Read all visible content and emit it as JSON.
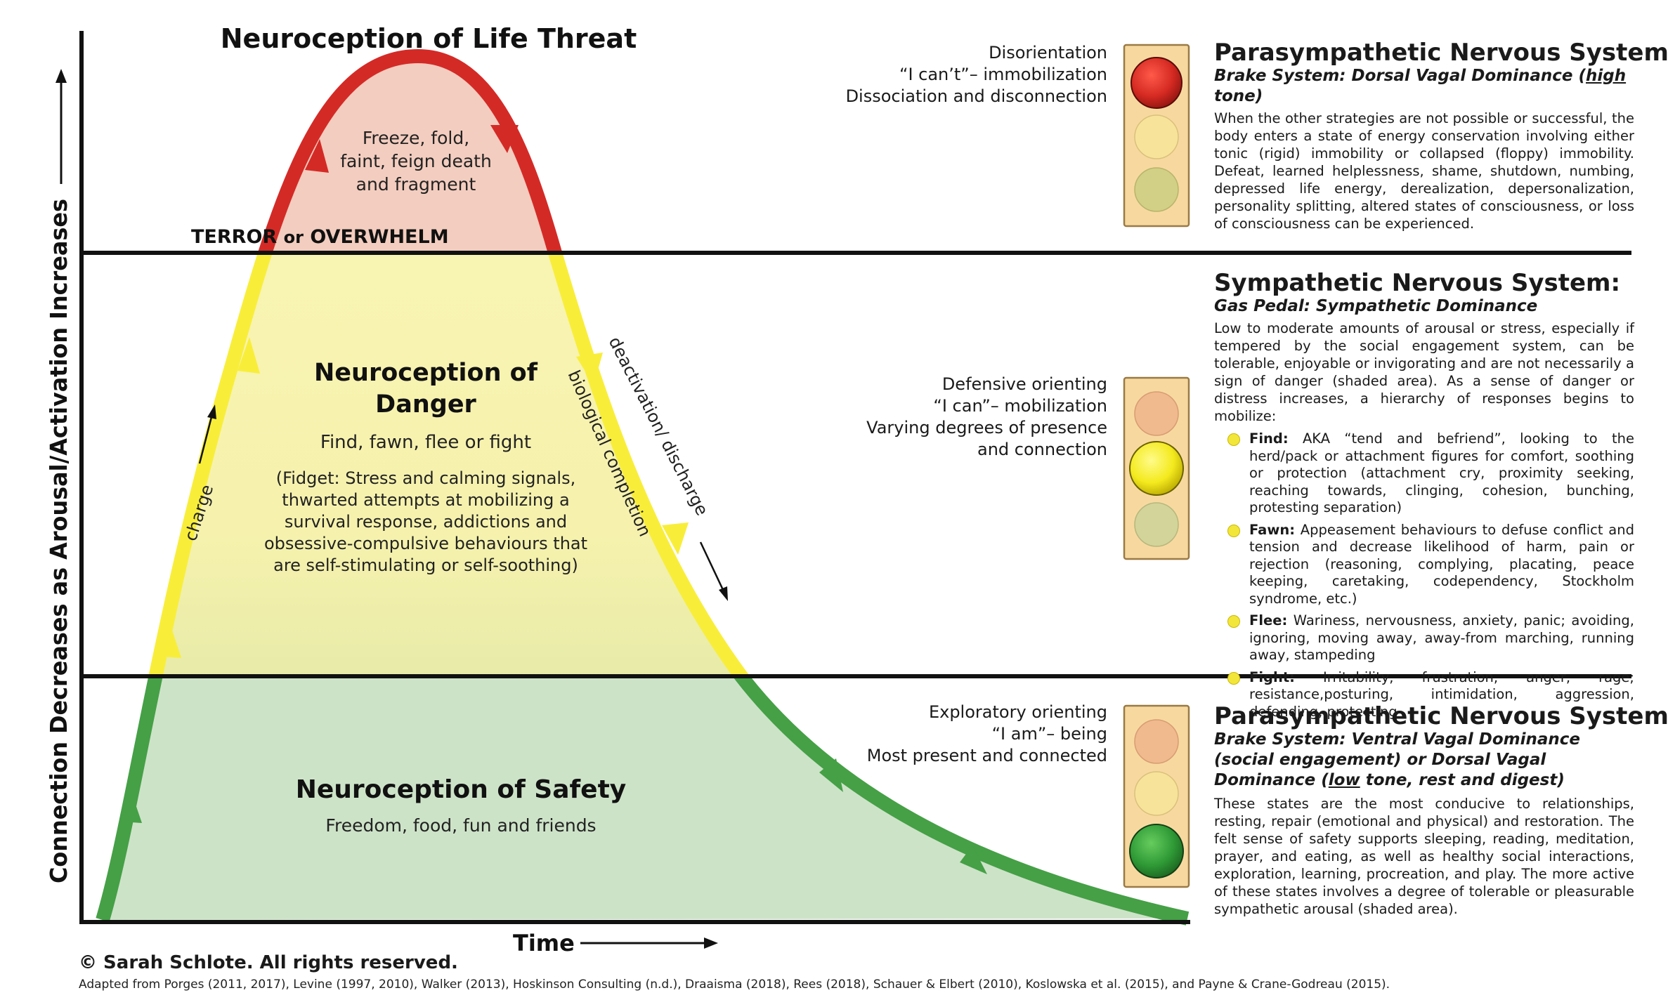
{
  "peak_title": "Neuroception of Life Threat",
  "peak_text": [
    "Freeze, fold,",
    "faint, feign death",
    "and fragment"
  ],
  "terror_label_a": "TERROR ",
  "terror_label_or": "or",
  "terror_label_b": " OVERWHELM",
  "danger": {
    "title": [
      "Neuroception of",
      "Danger"
    ],
    "subtitle": "Find, fawn, flee or fight",
    "note": [
      "(Fidget: Stress and calming signals,",
      "thwarted attempts at mobilizing a",
      "survival response, addictions and",
      "obsessive-compulsive behaviours that",
      "are self-stimulating or self-soothing)"
    ]
  },
  "safety": {
    "title": "Neuroception of Safety",
    "subtitle": "Freedom, food, fun and friends"
  },
  "curve_labels": {
    "charge": "charge",
    "biological": "biological completion",
    "deactivation": "deactivation/ discharge"
  },
  "axes": {
    "y_label": "Connection Decreases as Arousal/Activation Increases",
    "x_label": "Time"
  },
  "states": {
    "top": [
      "Disorientation",
      "“I can’t”– immobilization",
      "Dissociation and disconnection"
    ],
    "middle": [
      "Defensive orienting",
      "“I can”– mobilization",
      "Varying degrees of presence",
      "and connection"
    ],
    "bottom": [
      "Exploratory orienting",
      "“I am”– being",
      "Most present and connected"
    ]
  },
  "traffic_lights": {
    "top": {
      "active": "red"
    },
    "middle": {
      "active": "yellow"
    },
    "bottom": {
      "active": "green"
    }
  },
  "sections": {
    "dorsal": {
      "title": "Parasympathetic Nervous System:",
      "sub_a": "Brake System: Dorsal Vagal Dominance (",
      "sub_u": "high",
      "sub_b": " tone)",
      "body": "When the other strategies are not possible or successful, the body enters a state of energy conservation involving either tonic (rigid) immobility or collapsed (floppy) immobility. Defeat, learned helplessness, shame, shutdown, numbing, depressed life energy, derealization, depersonalization, personality splitting, altered states of consciousness, or loss of consciousness can be experienced."
    },
    "sympathetic": {
      "title": "Sympathetic Nervous System:",
      "sub": "Gas Pedal: Sympathetic Dominance",
      "body": "Low to moderate amounts of arousal or stress, especially if tempered by the social engagement system, can be tolerable, enjoyable or invigorating and are not necessarily a sign of danger (shaded area). As a sense of danger or distress increases, a hierarchy of responses begins to mobilize:",
      "responses": [
        {
          "name": "Find:",
          "text": " AKA “tend and befriend”, looking to the herd/pack or attachment figures for comfort, soothing or protection (attachment cry, proximity seeking, reaching towards, clinging, cohesion, bunching, protesting separation)"
        },
        {
          "name": "Fawn:",
          "text": " Appeasement behaviours to defuse conflict and tension and decrease likelihood of harm, pain or rejection (reasoning, complying, placating, peace keeping, caretaking, codependency, Stockholm syndrome, etc.)"
        },
        {
          "name": "Flee:",
          "text": " Wariness, nervousness, anxiety, panic; avoiding, ignoring, moving away, away-from marching, running away, stampeding"
        },
        {
          "name": "Fight:",
          "text": " Irritability, frustration, anger, rage; resistance,posturing, intimidation, aggression, defending, protecting"
        }
      ]
    },
    "ventral": {
      "title": "Parasympathetic Nervous System:",
      "sub_a": "Brake System: Ventral Vagal Dominance (social engagement) or Dorsal Vagal Dominance  (",
      "sub_u": "low",
      "sub_b": " tone, rest and digest)",
      "body": "These states are the most conducive to relationships, resting, repair (emotional and physical) and restoration. The felt sense of safety supports sleeping, reading, meditation, prayer, and eating, as well as healthy social interactions, exploration, learning, procreation, and play. The more active of these states involves a degree of tolerable or pleasurable sympathetic arousal (shaded area)."
    }
  },
  "footer": {
    "copyright": "© Sarah Schlote. All rights reserved.",
    "adapted": "Adapted from Porges (2011, 2017), Levine (1997, 2010), Walker (2013), Hoskinson Consulting (n.d.), Draaisma (2018), Rees (2018), Schauer & Elbert (2010), Koslowska et al. (2015), and Payne & Crane-Godreau (2015)."
  },
  "colors": {
    "red": "#d42a26",
    "yellow": "#f8ee3a",
    "green": "#45a046",
    "peak_fill": "#f3cdbf",
    "danger_fill": "#faf5b8",
    "safety_fill": "#cde3c8",
    "light_box": "#f7d9a0"
  }
}
